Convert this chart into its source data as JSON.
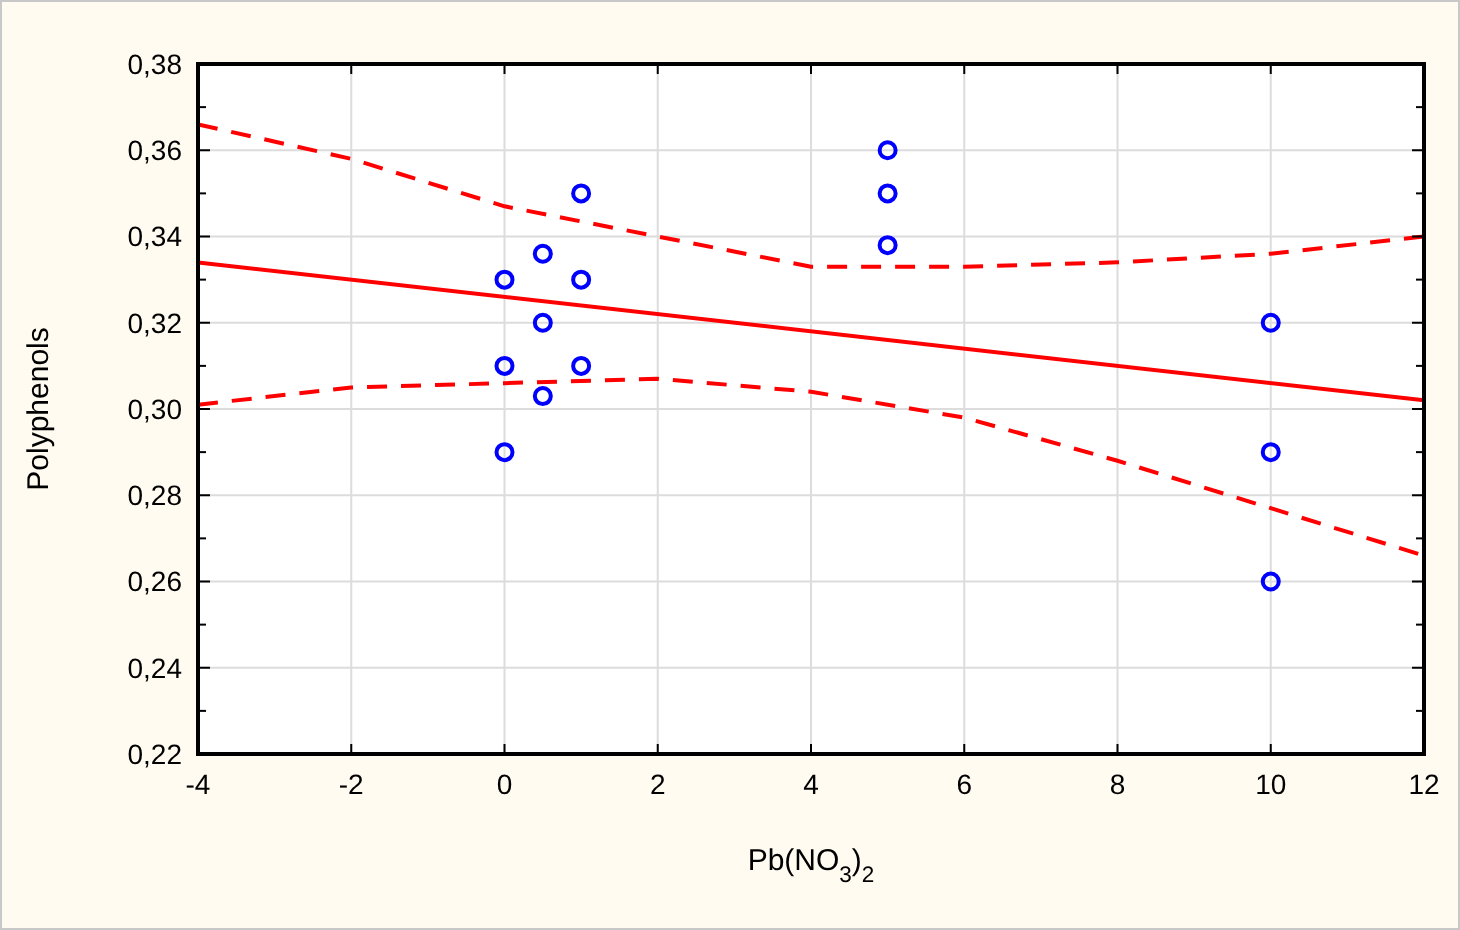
{
  "chart_data": {
    "type": "scatter",
    "xlabel": "Pb(NO$_{3}$)$_{2}$",
    "ylabel": "Polyphenols",
    "xlim": [
      -4,
      12
    ],
    "xticks": [
      -4,
      -2,
      0,
      2,
      4,
      6,
      8,
      10,
      12
    ],
    "ylim": [
      0.22,
      0.38
    ],
    "yticks": [
      {
        "value": 0.22,
        "label": "0,22"
      },
      {
        "value": 0.24,
        "label": "0,24"
      },
      {
        "value": 0.26,
        "label": "0,26"
      },
      {
        "value": 0.28,
        "label": "0,28"
      },
      {
        "value": 0.3,
        "label": "0,30"
      },
      {
        "value": 0.32,
        "label": "0,32"
      },
      {
        "value": 0.34,
        "label": "0,34"
      },
      {
        "value": 0.36,
        "label": "0,36"
      },
      {
        "value": 0.38,
        "label": "0,38"
      }
    ],
    "grid": true,
    "series": [
      {
        "color": "#0000ff",
        "marker": "circle",
        "x": [
          0,
          0,
          0,
          0.5,
          0.5,
          0.5,
          1,
          1,
          1,
          5,
          5,
          5,
          10,
          10,
          10
        ],
        "values": [
          0.33,
          0.31,
          0.29,
          0.336,
          0.32,
          0.303,
          0.35,
          0.33,
          0.31,
          0.36,
          0.35,
          0.338,
          0.32,
          0.29,
          0.26
        ]
      },
      {
        "type": "line",
        "color": "#ff0000",
        "line_style": "solid",
        "x": [
          -4,
          12
        ],
        "values": [
          0.334,
          0.302
        ]
      },
      {
        "type": "line",
        "color": "#ff0000",
        "line_style": "dashed",
        "x": [
          -4,
          -2,
          0,
          2,
          4,
          6,
          8,
          10,
          12
        ],
        "values": [
          0.366,
          0.358,
          0.347,
          0.34,
          0.333,
          0.333,
          0.334,
          0.336,
          0.34
        ]
      },
      {
        "type": "line",
        "color": "#ff0000",
        "line_style": "dashed",
        "x": [
          -4,
          -2,
          0,
          2,
          4,
          6,
          8,
          10,
          12
        ],
        "values": [
          0.301,
          0.305,
          0.306,
          0.307,
          0.304,
          0.298,
          0.288,
          0.277,
          0.266
        ]
      }
    ]
  }
}
